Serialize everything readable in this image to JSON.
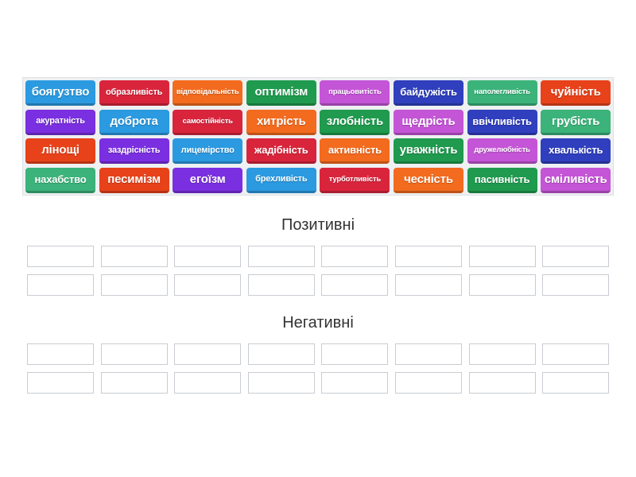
{
  "tiles": [
    {
      "label": "боягузтво",
      "color": "#2b9ae0",
      "size": "s1"
    },
    {
      "label": "образливість",
      "color": "#d9253c",
      "size": "s3"
    },
    {
      "label": "відповідальність",
      "color": "#f36b1e",
      "size": "s4"
    },
    {
      "label": "оптимізм",
      "color": "#1f9a4e",
      "size": "s1"
    },
    {
      "label": "працьовитість",
      "color": "#c455d6",
      "size": "s4"
    },
    {
      "label": "байдужість",
      "color": "#2f3fbd",
      "size": "s2"
    },
    {
      "label": "наполегливість",
      "color": "#3bb37a",
      "size": "s4"
    },
    {
      "label": "чуйність",
      "color": "#e8421a",
      "size": "s1"
    },
    {
      "label": "акуратність",
      "color": "#7a2fe0",
      "size": "s3"
    },
    {
      "label": "доброта",
      "color": "#2b9ae0",
      "size": "s1"
    },
    {
      "label": "самостійність",
      "color": "#d9253c",
      "size": "s4"
    },
    {
      "label": "хитрість",
      "color": "#f36b1e",
      "size": "s1"
    },
    {
      "label": "злобність",
      "color": "#1f9a4e",
      "size": "s1"
    },
    {
      "label": "щедрість",
      "color": "#c455d6",
      "size": "s1"
    },
    {
      "label": "ввічливість",
      "color": "#2f3fbd",
      "size": "s2"
    },
    {
      "label": "грубість",
      "color": "#3bb37a",
      "size": "s1"
    },
    {
      "label": "лінощі",
      "color": "#e8421a",
      "size": "s1"
    },
    {
      "label": "заздрісність",
      "color": "#7a2fe0",
      "size": "s3"
    },
    {
      "label": "лицемірство",
      "color": "#2b9ae0",
      "size": "s3"
    },
    {
      "label": "жадібність",
      "color": "#d9253c",
      "size": "s2"
    },
    {
      "label": "активність",
      "color": "#f36b1e",
      "size": "s2"
    },
    {
      "label": "уважність",
      "color": "#1f9a4e",
      "size": "s1"
    },
    {
      "label": "дружелюбність",
      "color": "#c455d6",
      "size": "s4"
    },
    {
      "label": "хвалькість",
      "color": "#2f3fbd",
      "size": "s2"
    },
    {
      "label": "нахабство",
      "color": "#3bb37a",
      "size": "s2"
    },
    {
      "label": "песимізм",
      "color": "#e8421a",
      "size": "s1"
    },
    {
      "label": "егоїзм",
      "color": "#7a2fe0",
      "size": "s1"
    },
    {
      "label": "брехливість",
      "color": "#2b9ae0",
      "size": "s3"
    },
    {
      "label": "турботливість",
      "color": "#d9253c",
      "size": "s4"
    },
    {
      "label": "чесність",
      "color": "#f36b1e",
      "size": "s1"
    },
    {
      "label": "пасивність",
      "color": "#1f9a4e",
      "size": "s2"
    },
    {
      "label": "сміливість",
      "color": "#c455d6",
      "size": "s1"
    }
  ],
  "groups": [
    {
      "title": "Позитивні",
      "slot_count": 16
    },
    {
      "title": "Негативні",
      "slot_count": 16
    }
  ]
}
